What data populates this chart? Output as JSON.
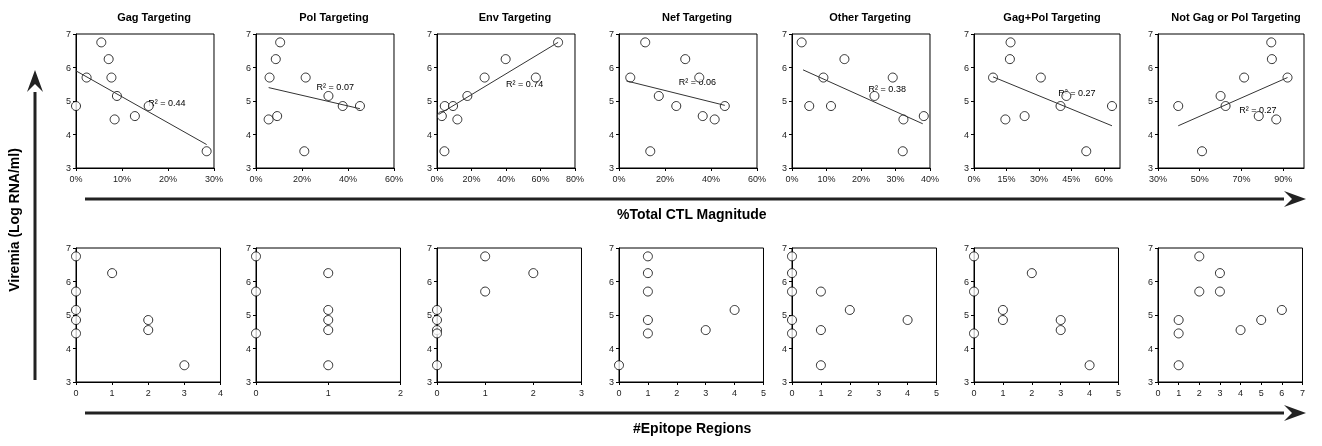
{
  "chart_data": [
    {
      "type": "scatter",
      "title": "Gag Targeting",
      "ylabel": "Viremia (Log RNA/ml)",
      "xlim": [
        0,
        30
      ],
      "xticks": [
        {
          "value": 0,
          "label": "0%"
        },
        {
          "value": 10,
          "label": "10%"
        },
        {
          "value": 20,
          "label": "20%"
        },
        {
          "value": 30,
          "label": "30%"
        }
      ],
      "ylim": [
        3,
        7
      ],
      "yticks": [
        3,
        4,
        5,
        6,
        7
      ],
      "annotations": [
        "R² = 0.44"
      ],
      "series": [
        {
          "marker": "circle",
          "color": "#000000",
          "x": [
            0,
            2.3,
            5.5,
            7.1,
            7.7,
            8.9,
            8.4,
            12.8,
            15.8,
            28.4
          ],
          "values": [
            4.85,
            5.7,
            6.75,
            6.25,
            5.7,
            5.15,
            4.45,
            4.55,
            4.85,
            3.5
          ]
        },
        {
          "type": "line",
          "marker": "none",
          "color": "#333333",
          "x": [
            0,
            28.4
          ],
          "values": [
            5.9,
            3.7
          ]
        }
      ]
    },
    {
      "type": "scatter",
      "title": "Pol Targeting",
      "xlim": [
        0,
        60
      ],
      "xticks": [
        {
          "value": 0,
          "label": "0%"
        },
        {
          "value": 20,
          "label": "20%"
        },
        {
          "value": 40,
          "label": "40%"
        },
        {
          "value": 60,
          "label": "60%"
        }
      ],
      "ylim": [
        3,
        7
      ],
      "yticks": [
        3,
        4,
        5,
        6,
        7
      ],
      "annotations": [
        "R² = 0.07"
      ],
      "series": [
        {
          "marker": "circle",
          "color": "#000000",
          "x": [
            5.5,
            5.9,
            8.6,
            10.5,
            9.2,
            21,
            21.6,
            31.5,
            37.7,
            45.2
          ],
          "values": [
            4.45,
            5.7,
            6.25,
            6.75,
            4.55,
            3.5,
            5.7,
            5.15,
            4.85,
            4.85
          ]
        },
        {
          "type": "line",
          "marker": "none",
          "color": "#333333",
          "x": [
            5.5,
            45.2
          ],
          "values": [
            5.4,
            4.77
          ]
        }
      ]
    },
    {
      "type": "scatter",
      "title": "Env Targeting",
      "xlim": [
        0,
        80
      ],
      "xticks": [
        {
          "value": 0,
          "label": "0%"
        },
        {
          "value": 20,
          "label": "20%"
        },
        {
          "value": 40,
          "label": "40%"
        },
        {
          "value": 60,
          "label": "60%"
        },
        {
          "value": 80,
          "label": "80%"
        }
      ],
      "ylim": [
        3,
        7
      ],
      "yticks": [
        3,
        4,
        5,
        6,
        7
      ],
      "annotations": [
        "R² = 0.74"
      ],
      "series": [
        {
          "marker": "circle",
          "color": "#000000",
          "x": [
            2.8,
            4.5,
            9.3,
            11.8,
            4.3,
            17.6,
            27.6,
            39.8,
            57.3,
            70.2
          ],
          "values": [
            4.55,
            4.85,
            4.85,
            4.45,
            3.5,
            5.15,
            5.7,
            6.25,
            5.7,
            6.75
          ]
        },
        {
          "type": "line",
          "marker": "none",
          "color": "#333333",
          "x": [
            1,
            70.2
          ],
          "values": [
            4.6,
            6.75
          ]
        }
      ]
    },
    {
      "type": "scatter",
      "title": "Nef Targeting",
      "xlabel": "%Total CTL Magnitude",
      "xlim": [
        0,
        60
      ],
      "xticks": [
        {
          "value": 0,
          "label": "0%"
        },
        {
          "value": 20,
          "label": "20%"
        },
        {
          "value": 40,
          "label": "40%"
        },
        {
          "value": 60,
          "label": "60%"
        }
      ],
      "ylim": [
        3,
        7
      ],
      "yticks": [
        3,
        4,
        5,
        6,
        7
      ],
      "annotations": [
        "R² = 0.06"
      ],
      "series": [
        {
          "marker": "circle",
          "color": "#000000",
          "x": [
            4.9,
            11.4,
            13.6,
            17.3,
            24.9,
            28.8,
            34.9,
            36.4,
            41.6,
            46
          ],
          "values": [
            5.7,
            6.75,
            3.5,
            5.15,
            4.85,
            6.25,
            5.7,
            4.55,
            4.45,
            4.85
          ]
        },
        {
          "type": "line",
          "marker": "none",
          "color": "#333333",
          "x": [
            3.2,
            46
          ],
          "values": [
            5.6,
            4.87
          ]
        }
      ]
    },
    {
      "type": "scatter",
      "title": "Other Targeting",
      "xlim": [
        0,
        40
      ],
      "xticks": [
        {
          "value": 0,
          "label": "0%"
        },
        {
          "value": 10,
          "label": "10%"
        },
        {
          "value": 20,
          "label": "20%"
        },
        {
          "value": 30,
          "label": "30%"
        },
        {
          "value": 40,
          "label": "40%"
        }
      ],
      "ylim": [
        3,
        7
      ],
      "yticks": [
        3,
        4,
        5,
        6,
        7
      ],
      "annotations": [
        "R² = 0.38"
      ],
      "series": [
        {
          "marker": "circle",
          "color": "#000000",
          "x": [
            2.8,
            5,
            9.1,
            11.3,
            15.2,
            23.9,
            29.2,
            32.3,
            32.1,
            38.2
          ],
          "values": [
            6.75,
            4.85,
            5.7,
            4.85,
            6.25,
            5.15,
            5.7,
            4.45,
            3.5,
            4.55
          ]
        },
        {
          "type": "line",
          "marker": "none",
          "color": "#333333",
          "x": [
            3.2,
            37.9
          ],
          "values": [
            5.93,
            4.32
          ]
        }
      ]
    },
    {
      "type": "scatter",
      "title": "Gag+Pol Targeting",
      "xlim": [
        0,
        67.5
      ],
      "xticks": [
        {
          "value": 0,
          "label": "0%"
        },
        {
          "value": 15,
          "label": "15%"
        },
        {
          "value": 30,
          "label": "30%"
        },
        {
          "value": 45,
          "label": "45%"
        },
        {
          "value": 60,
          "label": "60%"
        }
      ],
      "ylim": [
        3,
        7
      ],
      "yticks": [
        3,
        4,
        5,
        6,
        7
      ],
      "annotations": [
        "R² = 0.27"
      ],
      "series": [
        {
          "marker": "circle",
          "color": "#000000",
          "x": [
            8.8,
            16.9,
            16.6,
            14.5,
            23.4,
            30.9,
            40,
            42.7,
            51.9,
            63.8
          ],
          "values": [
            5.7,
            6.75,
            6.25,
            4.45,
            4.55,
            5.7,
            4.85,
            5.15,
            3.5,
            4.85
          ]
        },
        {
          "type": "line",
          "marker": "none",
          "color": "#333333",
          "x": [
            8.8,
            63.8
          ],
          "values": [
            5.72,
            4.26
          ]
        }
      ]
    },
    {
      "type": "scatter",
      "title": "Not Gag or Pol Targeting",
      "xlim": [
        30,
        100
      ],
      "xticks": [
        {
          "value": 30,
          "label": "30%"
        },
        {
          "value": 50,
          "label": "50%"
        },
        {
          "value": 70,
          "label": "70%"
        },
        {
          "value": 90,
          "label": "90%"
        }
      ],
      "ylim": [
        3,
        7
      ],
      "yticks": [
        3,
        4,
        5,
        6,
        7
      ],
      "annotations": [
        "R² = 0.27"
      ],
      "series": [
        {
          "marker": "circle",
          "color": "#000000",
          "x": [
            39.7,
            51.1,
            60,
            62.4,
            71.3,
            78.3,
            84.3,
            84.6,
            86.7,
            92.1
          ],
          "values": [
            4.85,
            3.5,
            5.15,
            4.85,
            5.7,
            4.55,
            6.75,
            6.25,
            4.45,
            5.7
          ]
        },
        {
          "type": "line",
          "marker": "none",
          "color": "#333333",
          "x": [
            39.7,
            92.1
          ],
          "values": [
            4.26,
            5.7
          ]
        }
      ]
    },
    {
      "type": "scatter",
      "xlim": [
        0,
        4
      ],
      "xticks": [
        0,
        1,
        2,
        3,
        4
      ],
      "ylim": [
        3,
        7
      ],
      "yticks": [
        3,
        4,
        5,
        6,
        7
      ],
      "marker": "circle",
      "color": "#000000",
      "x": [
        0,
        0,
        0,
        0,
        0,
        1,
        2,
        2,
        3
      ],
      "values": [
        6.75,
        5.7,
        5.15,
        4.85,
        4.45,
        6.25,
        4.85,
        4.55,
        3.5
      ]
    },
    {
      "type": "scatter",
      "xlim": [
        0,
        2
      ],
      "xticks": [
        0,
        1,
        2
      ],
      "ylim": [
        3,
        7
      ],
      "yticks": [
        3,
        4,
        5,
        6,
        7
      ],
      "marker": "circle",
      "color": "#000000",
      "x": [
        0,
        0,
        0,
        1,
        1,
        1,
        1,
        1
      ],
      "values": [
        6.75,
        5.7,
        4.45,
        6.25,
        5.15,
        4.85,
        4.55,
        3.5
      ]
    },
    {
      "type": "scatter",
      "xlim": [
        0,
        3
      ],
      "xticks": [
        0,
        1,
        2,
        3
      ],
      "ylim": [
        3,
        7
      ],
      "yticks": [
        3,
        4,
        5,
        6,
        7
      ],
      "marker": "circle",
      "color": "#000000",
      "x": [
        0,
        0,
        0,
        0,
        0,
        1,
        1,
        2
      ],
      "values": [
        5.15,
        4.85,
        4.55,
        4.45,
        3.5,
        6.75,
        5.7,
        6.25
      ]
    },
    {
      "type": "scatter",
      "xlabel": "#Epitope Regions",
      "xlim": [
        0,
        5
      ],
      "xticks": [
        0,
        1,
        2,
        3,
        4,
        5
      ],
      "ylim": [
        3,
        7
      ],
      "yticks": [
        3,
        4,
        5,
        6,
        7
      ],
      "marker": "circle",
      "color": "#000000",
      "x": [
        0,
        1,
        1,
        1,
        1,
        1,
        3,
        4
      ],
      "values": [
        3.5,
        6.75,
        6.25,
        5.7,
        4.85,
        4.45,
        4.55,
        5.15
      ]
    },
    {
      "type": "scatter",
      "xlim": [
        0,
        5
      ],
      "xticks": [
        0,
        1,
        2,
        3,
        4,
        5
      ],
      "ylim": [
        3,
        7
      ],
      "yticks": [
        3,
        4,
        5,
        6,
        7
      ],
      "marker": "circle",
      "color": "#000000",
      "x": [
        0,
        0,
        0,
        0,
        0,
        1,
        1,
        1,
        2,
        4
      ],
      "values": [
        6.75,
        6.25,
        5.7,
        4.85,
        4.45,
        5.7,
        4.55,
        3.5,
        5.15,
        4.85
      ]
    },
    {
      "type": "scatter",
      "xlim": [
        0,
        5
      ],
      "xticks": [
        0,
        1,
        2,
        3,
        4,
        5
      ],
      "ylim": [
        3,
        7
      ],
      "yticks": [
        3,
        4,
        5,
        6,
        7
      ],
      "marker": "circle",
      "color": "#000000",
      "x": [
        0,
        0,
        0,
        1,
        1,
        2,
        3,
        3,
        4
      ],
      "values": [
        6.75,
        5.7,
        4.45,
        5.15,
        4.85,
        6.25,
        4.85,
        4.55,
        3.5
      ]
    },
    {
      "type": "scatter",
      "xlim": [
        0,
        7
      ],
      "xticks": [
        0,
        1,
        2,
        3,
        4,
        5,
        6,
        7
      ],
      "ylim": [
        3,
        7
      ],
      "yticks": [
        3,
        4,
        5,
        6,
        7
      ],
      "marker": "circle",
      "color": "#000000",
      "x": [
        1,
        1,
        1,
        2,
        2,
        3,
        3,
        4,
        5,
        6
      ],
      "values": [
        4.85,
        4.45,
        3.5,
        6.75,
        5.7,
        6.25,
        5.7,
        4.55,
        4.85,
        5.15
      ]
    }
  ]
}
